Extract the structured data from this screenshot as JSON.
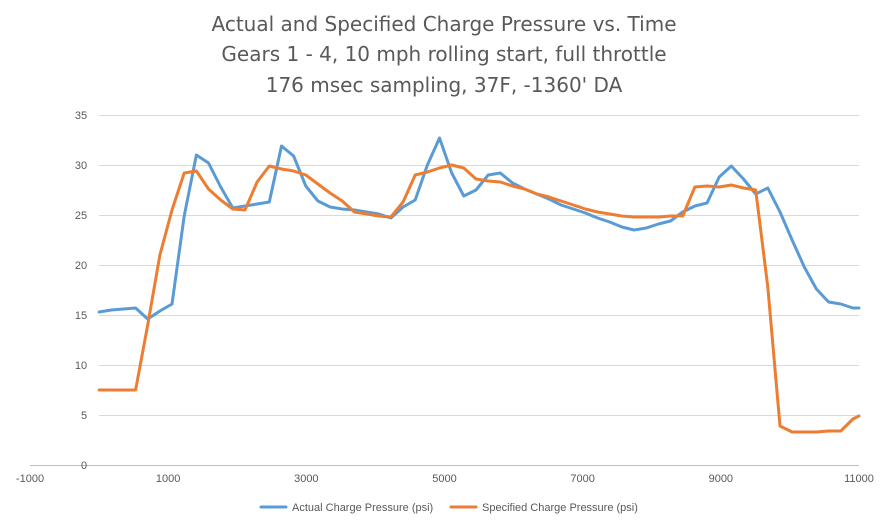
{
  "chart_data": {
    "type": "line",
    "title_lines": [
      "Actual and Specified Charge Pressure vs. Time",
      "Gears 1 - 4, 10 mph rolling start, full throttle",
      "176 msec sampling, 37F, -1360' DA"
    ],
    "xlabel": "",
    "ylabel": "",
    "xlim": [
      -1000,
      11000
    ],
    "ylim": [
      0,
      35
    ],
    "x_ticks": [
      -1000,
      1000,
      3000,
      5000,
      7000,
      9000,
      11000
    ],
    "x_tick_labels": [
      "-1000",
      "1000",
      "3000",
      "5000",
      "7000",
      "9000",
      "11000"
    ],
    "y_ticks": [
      0,
      5,
      10,
      15,
      20,
      25,
      30,
      35
    ],
    "y_tick_labels": [
      "0",
      "5",
      "10",
      "15",
      "20",
      "25",
      "30",
      "35"
    ],
    "grid": "horizontal",
    "legend_position": "bottom",
    "series": [
      {
        "name": "Actual Charge Pressure (psi)",
        "color": "#5b9bd5",
        "x": [
          0,
          176,
          352,
          528,
          704,
          880,
          1056,
          1232,
          1408,
          1584,
          1760,
          1936,
          2112,
          2288,
          2464,
          2640,
          2816,
          2992,
          3168,
          3344,
          3520,
          3696,
          3872,
          4048,
          4224,
          4400,
          4576,
          4752,
          4928,
          5104,
          5280,
          5456,
          5632,
          5808,
          5984,
          6160,
          6336,
          6512,
          6688,
          6864,
          7040,
          7216,
          7392,
          7568,
          7744,
          7920,
          8096,
          8272,
          8448,
          8624,
          8800,
          8976,
          9152,
          9328,
          9504,
          9680,
          9856,
          10032,
          10208,
          10384,
          10560,
          10736,
          10912,
          11000
        ],
        "y": [
          15.3,
          15.5,
          15.6,
          15.7,
          14.6,
          15.4,
          16.1,
          24.9,
          31.0,
          30.2,
          27.8,
          25.7,
          25.9,
          26.1,
          26.3,
          31.9,
          30.9,
          27.9,
          26.4,
          25.8,
          25.6,
          25.5,
          25.3,
          25.1,
          24.7,
          25.8,
          26.5,
          30.0,
          32.7,
          29.2,
          26.9,
          27.5,
          29.0,
          29.2,
          28.2,
          27.6,
          27.1,
          26.6,
          26.0,
          25.6,
          25.2,
          24.7,
          24.3,
          23.8,
          23.5,
          23.7,
          24.1,
          24.4,
          25.3,
          25.9,
          26.2,
          28.8,
          29.9,
          28.6,
          27.1,
          27.7,
          25.3,
          22.5,
          19.8,
          17.6,
          16.3,
          16.1,
          15.7,
          15.7
        ]
      },
      {
        "name": "Specified Charge Pressure (psi)",
        "color": "#ed7d31",
        "x": [
          0,
          176,
          352,
          528,
          704,
          880,
          1056,
          1232,
          1408,
          1584,
          1760,
          1936,
          2112,
          2288,
          2464,
          2640,
          2816,
          2992,
          3168,
          3344,
          3520,
          3696,
          3872,
          4048,
          4224,
          4400,
          4576,
          4752,
          4928,
          5104,
          5280,
          5456,
          5632,
          5808,
          5984,
          6160,
          6336,
          6512,
          6688,
          6864,
          7040,
          7216,
          7392,
          7568,
          7744,
          7920,
          8096,
          8272,
          8448,
          8624,
          8800,
          8976,
          9152,
          9328,
          9504,
          9680,
          9856,
          10032,
          10208,
          10384,
          10560,
          10736,
          10912,
          11000
        ],
        "y": [
          7.5,
          7.5,
          7.5,
          7.5,
          14.0,
          21.0,
          25.5,
          29.2,
          29.4,
          27.6,
          26.5,
          25.6,
          25.5,
          28.3,
          29.9,
          29.6,
          29.4,
          29.0,
          28.1,
          27.2,
          26.4,
          25.3,
          25.1,
          24.9,
          24.8,
          26.3,
          29.0,
          29.3,
          29.7,
          30.0,
          29.7,
          28.6,
          28.4,
          28.3,
          27.9,
          27.6,
          27.1,
          26.8,
          26.4,
          26.0,
          25.6,
          25.3,
          25.1,
          24.9,
          24.8,
          24.8,
          24.8,
          24.9,
          24.9,
          27.8,
          27.9,
          27.8,
          28.0,
          27.7,
          27.5,
          17.8,
          3.9,
          3.3,
          3.3,
          3.3,
          3.4,
          3.4,
          4.6,
          4.9
        ]
      }
    ]
  }
}
